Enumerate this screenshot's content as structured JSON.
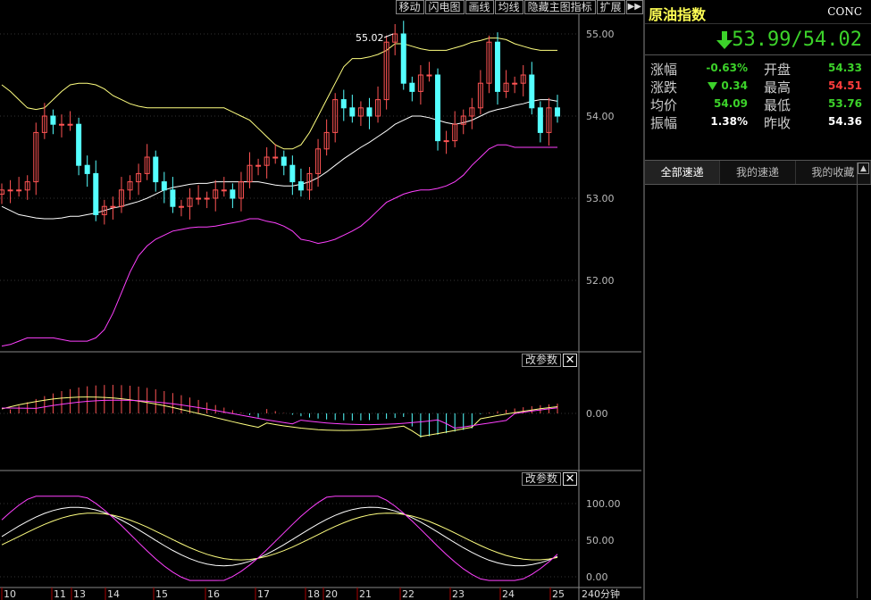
{
  "toolbar": {
    "buttons": [
      "移动",
      "闪电图",
      "画线",
      "均线",
      "隐藏主图指标",
      "扩展"
    ],
    "more": "▶▶"
  },
  "main_chart": {
    "y_labels": [
      "55.00",
      "54.00",
      "53.00",
      "52.00"
    ],
    "y_values": [
      55,
      54,
      53,
      52
    ],
    "ymin": 51.2,
    "ymax": 55.35,
    "high_marker": "55.02"
  },
  "macd_panel": {
    "change_param": "改参数",
    "close": "✕",
    "y_label": "0.00"
  },
  "kdj_panel": {
    "change_param": "改参数",
    "close": "✕",
    "y_labels": [
      "100.00",
      "50.00",
      "0.00"
    ],
    "y_values": [
      100,
      50,
      0
    ]
  },
  "x_axis": {
    "labels": [
      "10",
      "11",
      "13",
      "14",
      "15",
      "16",
      "17",
      "18",
      "20",
      "21",
      "22",
      "23",
      "24",
      "25"
    ],
    "period": "240分钟"
  },
  "colors": {
    "up": "#ff5454",
    "down": "#54ffff",
    "yellow": "#ffff80",
    "magenta": "#ff40ff",
    "white": "#ffffff",
    "green": "#3cd22a",
    "red": "#ff3c3c"
  },
  "chart_data": {
    "type": "candlestick",
    "close": [
      53.1,
      53.1,
      53.1,
      53.2,
      53.8,
      54.0,
      53.9,
      53.9,
      53.9,
      53.4,
      53.3,
      52.8,
      52.9,
      52.9,
      53.1,
      53.2,
      53.3,
      53.5,
      53.2,
      53.1,
      52.9,
      52.9,
      53.0,
      53.0,
      53.0,
      53.1,
      53.1,
      53.0,
      53.2,
      53.4,
      53.4,
      53.5,
      53.5,
      53.4,
      53.2,
      53.1,
      53.3,
      53.6,
      53.8,
      54.2,
      54.1,
      54.0,
      54.1,
      54.0,
      54.2,
      54.9,
      55.0,
      54.4,
      54.3,
      54.5,
      54.5,
      53.7,
      53.7,
      53.9,
      54.0,
      54.1,
      54.4,
      54.9,
      54.3,
      54.4,
      54.4,
      54.5,
      54.1,
      53.8,
      54.1,
      54.0
    ],
    "series": [
      {
        "name": "BOLL-UP",
        "values": [
          54.38,
          54.3,
          54.2,
          54.1,
          54.08,
          54.1,
          54.2,
          54.3,
          54.38,
          54.4,
          54.4,
          54.38,
          54.33,
          54.25,
          54.2,
          54.15,
          54.12,
          54.1,
          54.1,
          54.1,
          54.1,
          54.1,
          54.1,
          54.1,
          54.1,
          54.1,
          54.1,
          54.05,
          54.0,
          53.95,
          53.85,
          53.75,
          53.65,
          53.6,
          53.6,
          53.65,
          53.8,
          54.0,
          54.2,
          54.4,
          54.6,
          54.7,
          54.7,
          54.72,
          54.75,
          54.8,
          54.88,
          54.88,
          54.85,
          54.82,
          54.8,
          54.8,
          54.8,
          54.83,
          54.86,
          54.9,
          54.92,
          54.95,
          54.95,
          54.93,
          54.88,
          54.85,
          54.82,
          54.8,
          54.8,
          54.8
        ]
      },
      {
        "name": "BOLL-MID",
        "values": [
          52.9,
          52.85,
          52.8,
          52.78,
          52.76,
          52.75,
          52.75,
          52.76,
          52.78,
          52.78,
          52.8,
          52.82,
          52.85,
          52.88,
          52.9,
          52.93,
          52.96,
          53.0,
          53.05,
          53.1,
          53.13,
          53.15,
          53.17,
          53.18,
          53.18,
          53.2,
          53.2,
          53.2,
          53.2,
          53.2,
          53.2,
          53.18,
          53.16,
          53.15,
          53.15,
          53.17,
          53.2,
          53.25,
          53.32,
          53.4,
          53.48,
          53.55,
          53.62,
          53.68,
          53.75,
          53.82,
          53.9,
          53.95,
          54.0,
          54.0,
          53.98,
          53.95,
          53.92,
          53.9,
          53.92,
          53.95,
          54.0,
          54.05,
          54.08,
          54.1,
          54.13,
          54.15,
          54.18,
          54.2,
          54.2,
          54.18
        ]
      },
      {
        "name": "BOLL-DN",
        "values": [
          51.2,
          51.22,
          51.26,
          51.3,
          51.3,
          51.3,
          51.3,
          51.28,
          51.26,
          51.26,
          51.26,
          51.3,
          51.4,
          51.6,
          51.85,
          52.1,
          52.3,
          52.42,
          52.5,
          52.55,
          52.6,
          52.62,
          52.64,
          52.65,
          52.65,
          52.66,
          52.68,
          52.7,
          52.72,
          52.75,
          52.75,
          52.72,
          52.7,
          52.66,
          52.6,
          52.5,
          52.48,
          52.45,
          52.47,
          52.5,
          52.55,
          52.6,
          52.66,
          52.75,
          52.85,
          52.95,
          53.0,
          53.05,
          53.08,
          53.1,
          53.1,
          53.12,
          53.15,
          53.2,
          53.28,
          53.4,
          53.5,
          53.6,
          53.65,
          53.65,
          53.62,
          53.62,
          53.62,
          53.62,
          53.62,
          53.62
        ]
      }
    ]
  },
  "right_panel": {
    "name": "原油指数",
    "code": "CONC",
    "price": "53.99/54.02",
    "stats": [
      {
        "l1": "涨幅",
        "v1": "-0.63%",
        "c1": "#3cd22a",
        "l2": "开盘",
        "v2": "54.33",
        "c2": "#3cd22a"
      },
      {
        "l1": "涨跌",
        "v1": "0.34",
        "c1": "#3cd22a",
        "l2": "最高",
        "v2": "54.51",
        "c2": "#ff3c3c"
      },
      {
        "l1": "均价",
        "v1": "54.09",
        "c1": "#3cd22a",
        "l2": "最低",
        "v2": "53.76",
        "c2": "#3cd22a"
      },
      {
        "l1": "振幅",
        "v1": "1.38%",
        "c1": "#ffffff",
        "l2": "昨收",
        "v2": "54.36",
        "c2": "#ffffff"
      }
    ],
    "tabs": [
      "全部速递",
      "我的速递",
      "我的收藏"
    ]
  }
}
